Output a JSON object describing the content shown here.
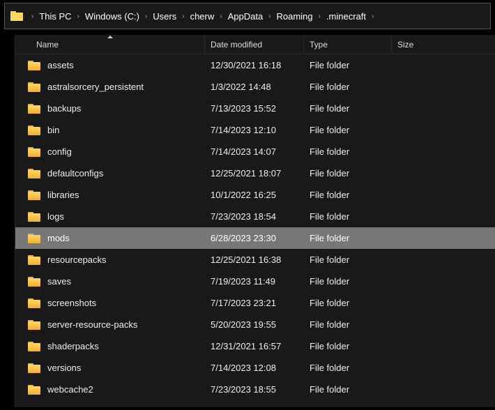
{
  "breadcrumb": {
    "items": [
      {
        "label": "This PC"
      },
      {
        "label": "Windows (C:)"
      },
      {
        "label": "Users"
      },
      {
        "label": "cherw"
      },
      {
        "label": "AppData"
      },
      {
        "label": "Roaming"
      },
      {
        "label": ".minecraft"
      }
    ],
    "separator": "›"
  },
  "columns": {
    "name": "Name",
    "date": "Date modified",
    "type": "Type",
    "size": "Size"
  },
  "rows": [
    {
      "name": "assets",
      "date": "12/30/2021 16:18",
      "type": "File folder",
      "selected": false
    },
    {
      "name": "astralsorcery_persistent",
      "date": "1/3/2022 14:48",
      "type": "File folder",
      "selected": false
    },
    {
      "name": "backups",
      "date": "7/13/2023 15:52",
      "type": "File folder",
      "selected": false
    },
    {
      "name": "bin",
      "date": "7/14/2023 12:10",
      "type": "File folder",
      "selected": false
    },
    {
      "name": "config",
      "date": "7/14/2023 14:07",
      "type": "File folder",
      "selected": false
    },
    {
      "name": "defaultconfigs",
      "date": "12/25/2021 18:07",
      "type": "File folder",
      "selected": false
    },
    {
      "name": "libraries",
      "date": "10/1/2022 16:25",
      "type": "File folder",
      "selected": false
    },
    {
      "name": "logs",
      "date": "7/23/2023 18:54",
      "type": "File folder",
      "selected": false
    },
    {
      "name": "mods",
      "date": "6/28/2023 23:30",
      "type": "File folder",
      "selected": true
    },
    {
      "name": "resourcepacks",
      "date": "12/25/2021 16:38",
      "type": "File folder",
      "selected": false
    },
    {
      "name": "saves",
      "date": "7/19/2023 11:49",
      "type": "File folder",
      "selected": false
    },
    {
      "name": "screenshots",
      "date": "7/17/2023 23:21",
      "type": "File folder",
      "selected": false
    },
    {
      "name": "server-resource-packs",
      "date": "5/20/2023 19:55",
      "type": "File folder",
      "selected": false
    },
    {
      "name": "shaderpacks",
      "date": "12/31/2021 16:57",
      "type": "File folder",
      "selected": false
    },
    {
      "name": "versions",
      "date": "7/14/2023 12:08",
      "type": "File folder",
      "selected": false
    },
    {
      "name": "webcache2",
      "date": "7/23/2023 18:55",
      "type": "File folder",
      "selected": false
    }
  ],
  "colors": {
    "background": "#191919",
    "page_bg": "#000000",
    "text": "#ffffff",
    "border": "#2a2a2a",
    "selected_bg": "#777777",
    "folder_icon": "#ffd75e"
  }
}
